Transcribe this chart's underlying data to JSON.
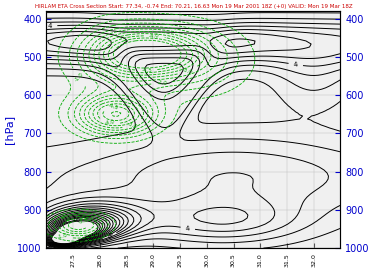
{
  "title": "HIRLAM ETA Cross Section Start: 77.34, -0.74 End: 70.21, 16.63 Mon 19 Mar 2001 18Z (+0) VALID: Mon 19 Mar 18Z",
  "title_color": "#cc0000",
  "ylabel_left": "[hPa]",
  "ylabel_left_color": "#0000cc",
  "ytick_color": "#0000cc",
  "ytick_labels": [
    400,
    500,
    600,
    700,
    800,
    900,
    1000
  ],
  "xlim": [
    27.0,
    32.5
  ],
  "ylim_pressure": [
    1000,
    380
  ],
  "xtick_vals": [
    27.5,
    28.0,
    28.5,
    29.0,
    29.5,
    30.0,
    30.5,
    31.0,
    31.5,
    32.0
  ],
  "background_color": "#f0f0f0",
  "solid_color": "#000000",
  "dashed_color": "#00aa00",
  "figsize": [
    3.74,
    2.71
  ],
  "dpi": 100
}
